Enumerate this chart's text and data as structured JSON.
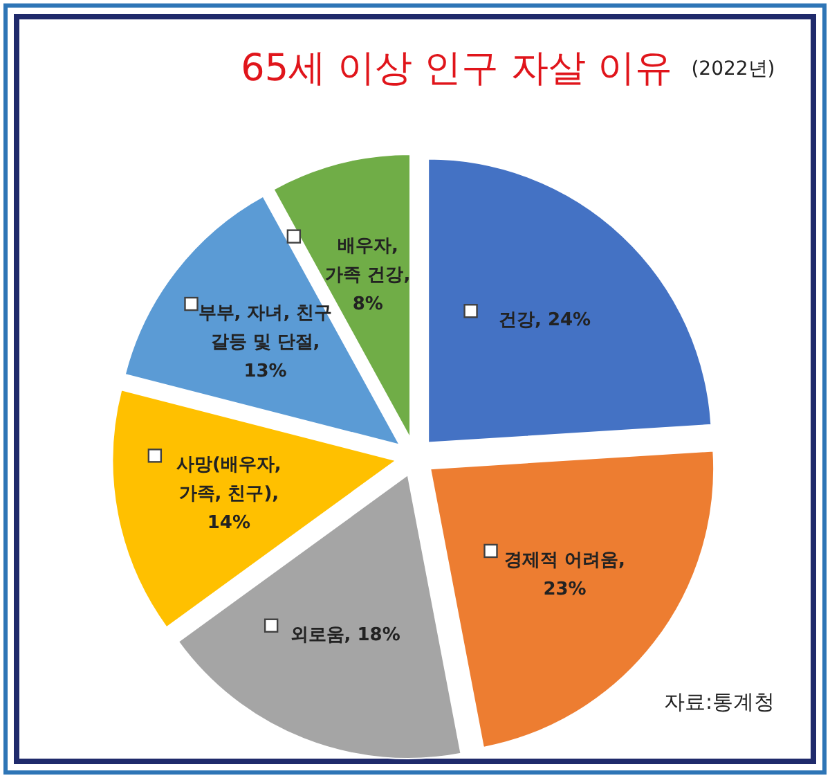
{
  "chart_data": {
    "type": "pie",
    "title": "65세 이상 인구 자살 이유",
    "subtitle": "(2022년)",
    "categories": [
      "건강",
      "경제적 어려움",
      "외로움",
      "사망(배우자, 가족, 친구)",
      "부부, 자녀, 친구 갈등 및 단절",
      "배우자, 가족 건강"
    ],
    "values": [
      24,
      23,
      18,
      14,
      13,
      8
    ],
    "colors": [
      "#4472c4",
      "#ed7d31",
      "#a5a5a5",
      "#ffc000",
      "#5b9bd5",
      "#70ad47"
    ],
    "value_labels": [
      ", 24%",
      ", 23%",
      ", 18%",
      ", 14%",
      ", 13%",
      ", 8%"
    ],
    "legend": false,
    "annotations": [
      "자료:통계청"
    ]
  }
}
